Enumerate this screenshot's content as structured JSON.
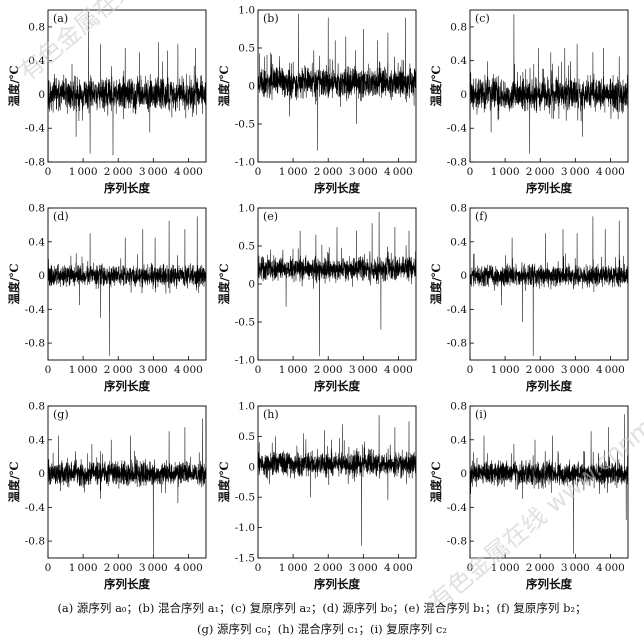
{
  "watermarks": [
    "有色金属在线 www.cnnmol.com",
    "有色金属在线 www.cnnmol.com"
  ],
  "caption": {
    "line1": "(a) 源序列 a₀；(b) 混合序列 a₁；(c) 复原序列 a₂；(d) 源序列 b₀；(e) 混合序列 b₁；(f) 复原序列 b₂；",
    "line2": "(g) 源序列 c₀；(h) 混合序列 c₁；(i) 复原序列 c₂"
  },
  "chart_data": [
    {
      "type": "line",
      "panel": "(a)",
      "xlabel": "序列长度",
      "ylabel": "温度/℃",
      "xlim": [
        0,
        4500
      ],
      "ylim": [
        -0.8,
        1.0
      ],
      "xticks": [
        0,
        1000,
        2000,
        3000,
        4000
      ],
      "yticks": [
        -0.8,
        -0.4,
        0,
        0.4,
        0.8
      ],
      "base": 0.0,
      "noise": 0.12,
      "seed": 11,
      "spikes": [
        [
          1150,
          0.98
        ],
        [
          1200,
          -0.7
        ],
        [
          1500,
          0.6
        ],
        [
          1850,
          -0.72
        ],
        [
          2200,
          0.55
        ],
        [
          2600,
          0.5
        ],
        [
          3150,
          0.62
        ],
        [
          3400,
          0.52
        ],
        [
          3700,
          0.6
        ],
        [
          4200,
          0.55
        ],
        [
          800,
          -0.5
        ],
        [
          2900,
          -0.45
        ]
      ]
    },
    {
      "type": "line",
      "panel": "(b)",
      "xlabel": "序列长度",
      "ylabel": "温度/℃",
      "xlim": [
        0,
        4500
      ],
      "ylim": [
        -1.0,
        1.0
      ],
      "xticks": [
        0,
        1000,
        2000,
        3000,
        4000
      ],
      "yticks": [
        -1.0,
        -0.5,
        0,
        0.5,
        1.0
      ],
      "base": 0.05,
      "noise": 0.13,
      "seed": 23,
      "spikes": [
        [
          1150,
          0.95
        ],
        [
          1700,
          -0.85
        ],
        [
          2000,
          0.9
        ],
        [
          2200,
          0.6
        ],
        [
          2500,
          0.65
        ],
        [
          3000,
          0.75
        ],
        [
          3400,
          0.6
        ],
        [
          3700,
          0.7
        ],
        [
          4200,
          0.9
        ],
        [
          900,
          -0.4
        ],
        [
          2800,
          -0.5
        ]
      ]
    },
    {
      "type": "line",
      "panel": "(c)",
      "xlabel": "序列长度",
      "ylabel": "温度/℃",
      "xlim": [
        0,
        4500
      ],
      "ylim": [
        -0.8,
        1.0
      ],
      "xticks": [
        0,
        1000,
        2000,
        3000,
        4000
      ],
      "yticks": [
        -0.8,
        -0.4,
        0,
        0.4,
        0.8
      ],
      "base": 0.0,
      "noise": 0.12,
      "seed": 37,
      "spikes": [
        [
          1250,
          0.95
        ],
        [
          1700,
          -0.7
        ],
        [
          1950,
          0.55
        ],
        [
          2300,
          0.5
        ],
        [
          2700,
          0.55
        ],
        [
          3050,
          0.6
        ],
        [
          3500,
          0.5
        ],
        [
          3800,
          0.55
        ],
        [
          4250,
          0.45
        ],
        [
          600,
          -0.45
        ],
        [
          3200,
          -0.5
        ]
      ]
    },
    {
      "type": "line",
      "panel": "(d)",
      "xlabel": "序列长度",
      "ylabel": "温度/℃",
      "xlim": [
        0,
        4500
      ],
      "ylim": [
        -1.0,
        0.8
      ],
      "xticks": [
        0,
        1000,
        2000,
        3000,
        4000
      ],
      "yticks": [
        -0.8,
        -0.4,
        0,
        0.4,
        0.8
      ],
      "base": 0.0,
      "noise": 0.08,
      "seed": 41,
      "spikes": [
        [
          1200,
          0.5
        ],
        [
          1500,
          -0.5
        ],
        [
          1750,
          -0.95
        ],
        [
          2200,
          0.45
        ],
        [
          2700,
          0.55
        ],
        [
          3050,
          0.45
        ],
        [
          3450,
          0.65
        ],
        [
          3900,
          0.55
        ],
        [
          4250,
          0.7
        ],
        [
          900,
          -0.35
        ]
      ]
    },
    {
      "type": "line",
      "panel": "(e)",
      "xlabel": "序列长度",
      "ylabel": "温度/℃",
      "xlim": [
        0,
        4500
      ],
      "ylim": [
        -1.0,
        1.0
      ],
      "xticks": [
        0,
        1000,
        2000,
        3000,
        4000
      ],
      "yticks": [
        -1.0,
        -0.5,
        0,
        0.5,
        1.0
      ],
      "base": 0.2,
      "noise": 0.1,
      "seed": 53,
      "spikes": [
        [
          1200,
          0.7
        ],
        [
          1650,
          0.65
        ],
        [
          1750,
          -0.95
        ],
        [
          2250,
          0.75
        ],
        [
          2800,
          0.7
        ],
        [
          3250,
          0.8
        ],
        [
          3450,
          0.95
        ],
        [
          3900,
          0.75
        ],
        [
          4300,
          0.7
        ],
        [
          800,
          -0.3
        ],
        [
          3500,
          -0.6
        ]
      ]
    },
    {
      "type": "line",
      "panel": "(f)",
      "xlabel": "序列长度",
      "ylabel": "温度/℃",
      "xlim": [
        0,
        4500
      ],
      "ylim": [
        -1.0,
        0.8
      ],
      "xticks": [
        0,
        1000,
        2000,
        3000,
        4000
      ],
      "yticks": [
        -0.8,
        -0.4,
        0,
        0.4,
        0.8
      ],
      "base": 0.0,
      "noise": 0.08,
      "seed": 67,
      "spikes": [
        [
          1200,
          0.45
        ],
        [
          1500,
          -0.55
        ],
        [
          1800,
          -0.95
        ],
        [
          2150,
          0.5
        ],
        [
          2650,
          0.55
        ],
        [
          3050,
          0.5
        ],
        [
          3500,
          0.7
        ],
        [
          3850,
          0.55
        ],
        [
          4250,
          0.65
        ],
        [
          900,
          -0.35
        ]
      ]
    },
    {
      "type": "line",
      "panel": "(g)",
      "xlabel": "序列长度",
      "ylabel": "温度/℃",
      "xlim": [
        0,
        4500
      ],
      "ylim": [
        -1.0,
        0.8
      ],
      "xticks": [
        0,
        1000,
        2000,
        3000,
        4000
      ],
      "yticks": [
        -0.8,
        -0.4,
        0,
        0.4,
        0.8
      ],
      "base": 0.0,
      "noise": 0.09,
      "seed": 71,
      "spikes": [
        [
          300,
          0.45
        ],
        [
          1250,
          0.35
        ],
        [
          1800,
          0.4
        ],
        [
          2350,
          0.45
        ],
        [
          3000,
          -0.95
        ],
        [
          3450,
          0.5
        ],
        [
          3900,
          0.55
        ],
        [
          4400,
          0.65
        ],
        [
          1500,
          -0.3
        ],
        [
          3700,
          -0.35
        ]
      ]
    },
    {
      "type": "line",
      "panel": "(h)",
      "xlabel": "序列长度",
      "ylabel": "温度/℃",
      "xlim": [
        0,
        4500
      ],
      "ylim": [
        -1.5,
        1.0
      ],
      "xticks": [
        0,
        1000,
        2000,
        3000,
        4000
      ],
      "yticks": [
        -1.5,
        -1.0,
        -0.5,
        0,
        0.5,
        1.0
      ],
      "base": 0.05,
      "noise": 0.13,
      "seed": 83,
      "spikes": [
        [
          500,
          0.5
        ],
        [
          1300,
          0.55
        ],
        [
          1900,
          0.6
        ],
        [
          2400,
          0.7
        ],
        [
          2950,
          -1.3
        ],
        [
          3450,
          0.85
        ],
        [
          3900,
          0.65
        ],
        [
          4300,
          0.75
        ],
        [
          1500,
          -0.5
        ],
        [
          3700,
          -0.55
        ]
      ]
    },
    {
      "type": "line",
      "panel": "(i)",
      "xlabel": "序列长度",
      "ylabel": "温度/℃",
      "xlim": [
        0,
        4500
      ],
      "ylim": [
        -1.0,
        0.8
      ],
      "xticks": [
        0,
        1000,
        2000,
        3000,
        4000
      ],
      "yticks": [
        -0.8,
        -0.4,
        0,
        0.4,
        0.8
      ],
      "base": 0.0,
      "noise": 0.09,
      "seed": 97,
      "spikes": [
        [
          400,
          0.45
        ],
        [
          1250,
          0.35
        ],
        [
          1850,
          0.4
        ],
        [
          2350,
          0.45
        ],
        [
          2950,
          -0.95
        ],
        [
          3450,
          0.5
        ],
        [
          3950,
          0.55
        ],
        [
          4400,
          0.7
        ],
        [
          1500,
          -0.3
        ],
        [
          4450,
          -0.55
        ]
      ]
    }
  ]
}
